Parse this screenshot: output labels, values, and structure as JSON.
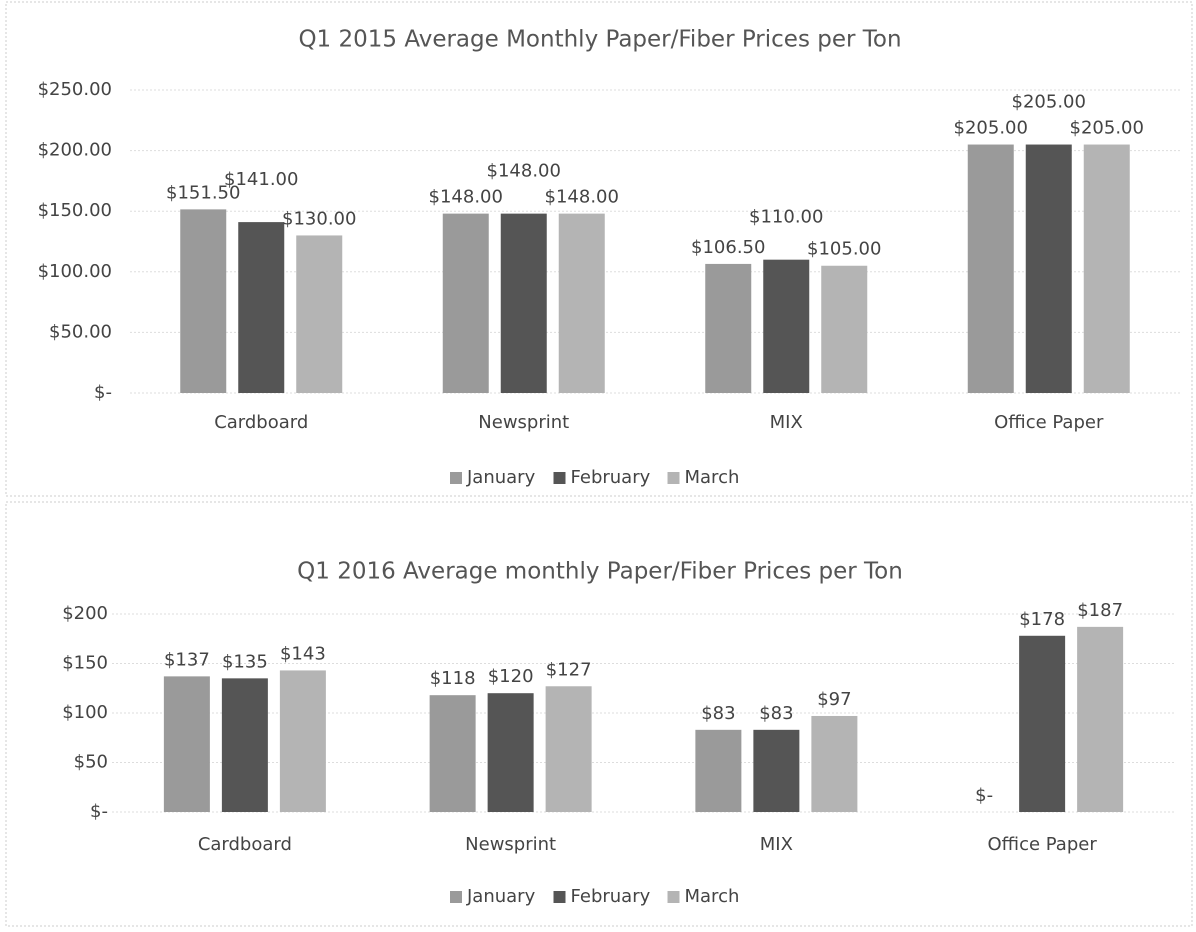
{
  "chart_data": [
    {
      "type": "bar",
      "title": "Q1 2015 Average Monthly Paper/Fiber Prices per Ton",
      "categories": [
        "Cardboard",
        "Newsprint",
        "MIX",
        "Office Paper"
      ],
      "series": [
        {
          "name": "January",
          "color": "#9a9a9a",
          "values": [
            151.5,
            148,
            106.5,
            205
          ],
          "value_labels": [
            "$151.50",
            "$148.00",
            "$106.50",
            "$205.00"
          ]
        },
        {
          "name": "February",
          "color": "#555555",
          "values": [
            141,
            148,
            110,
            205
          ],
          "value_labels": [
            "$141.00",
            "$148.00",
            "$110.00",
            "$205.00"
          ]
        },
        {
          "name": "March",
          "color": "#b4b4b4",
          "values": [
            130,
            148,
            105,
            205
          ],
          "value_labels": [
            "$130.00",
            "$148.00",
            "$105.00",
            "$205.00"
          ]
        }
      ],
      "ylim": [
        0,
        250
      ],
      "yticks": [
        {
          "value": 0,
          "label": "$-"
        },
        {
          "value": 50,
          "label": "$50.00"
        },
        {
          "value": 100,
          "label": "$100.00"
        },
        {
          "value": 150,
          "label": "$150.00"
        },
        {
          "value": 200,
          "label": "$200.00"
        },
        {
          "value": 250,
          "label": "$250.00"
        }
      ],
      "grid": true,
      "legend": "bottom"
    },
    {
      "type": "bar",
      "title": "Q1 2016 Average monthly Paper/Fiber Prices per Ton",
      "categories": [
        "Cardboard",
        "Newsprint",
        "MIX",
        "Office Paper"
      ],
      "series": [
        {
          "name": "January",
          "color": "#9a9a9a",
          "values": [
            137,
            118,
            83,
            0
          ],
          "value_labels": [
            "$137",
            "$118",
            "$83",
            "$-"
          ]
        },
        {
          "name": "February",
          "color": "#555555",
          "values": [
            135,
            120,
            83,
            178
          ],
          "value_labels": [
            "$135",
            "$120",
            "$83",
            "$178"
          ]
        },
        {
          "name": "March",
          "color": "#b4b4b4",
          "values": [
            143,
            127,
            97,
            187
          ],
          "value_labels": [
            "$143",
            "$127",
            "$97",
            "$187"
          ]
        }
      ],
      "ylim": [
        0,
        200
      ],
      "yticks": [
        {
          "value": 0,
          "label": "$-"
        },
        {
          "value": 50,
          "label": "$50"
        },
        {
          "value": 100,
          "label": "$100"
        },
        {
          "value": 150,
          "label": "$150"
        },
        {
          "value": 200,
          "label": "$200"
        }
      ],
      "grid": true,
      "legend": "bottom"
    }
  ]
}
